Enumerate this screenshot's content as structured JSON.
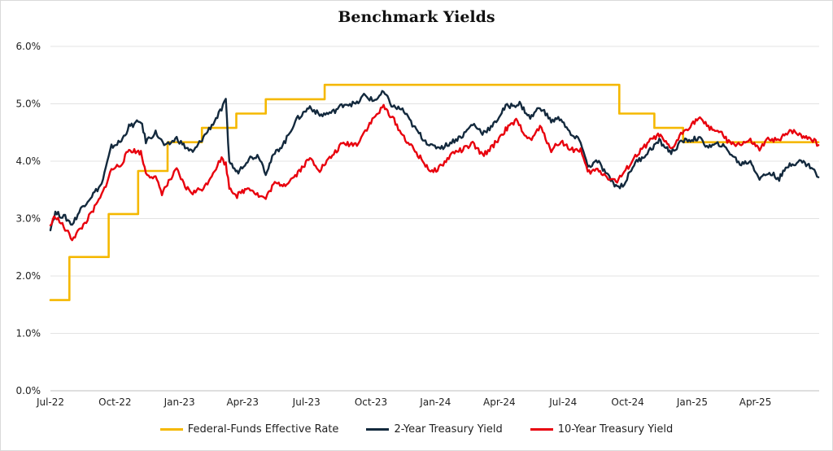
{
  "chart_data": {
    "type": "line",
    "title": "Benchmark Yields",
    "xlabel": "",
    "ylabel": "",
    "x_ticks": [
      "Jul-22",
      "Oct-22",
      "Jan-23",
      "Apr-23",
      "Jul-23",
      "Oct-23",
      "Jan-24",
      "Apr-24",
      "Jul-24",
      "Oct-24",
      "Jan-25",
      "Apr-25"
    ],
    "y_ticks": [
      "0.0%",
      "1.0%",
      "2.0%",
      "3.0%",
      "4.0%",
      "5.0%",
      "6.0%"
    ],
    "ylim": [
      0,
      6
    ],
    "xlim": [
      "2022-07-01",
      "2025-07-01"
    ],
    "grid": "horizontal",
    "legend_position": "bottom",
    "series": [
      {
        "name": "Federal-Funds Effective Rate",
        "color": "#f5b800",
        "step": true,
        "points": [
          [
            "2022-07-01",
            1.58
          ],
          [
            "2022-07-28",
            2.33
          ],
          [
            "2022-09-22",
            3.08
          ],
          [
            "2022-11-03",
            3.83
          ],
          [
            "2022-12-15",
            4.33
          ],
          [
            "2023-02-02",
            4.58
          ],
          [
            "2023-03-23",
            4.83
          ],
          [
            "2023-05-04",
            5.08
          ],
          [
            "2023-07-27",
            5.33
          ],
          [
            "2024-09-19",
            4.83
          ],
          [
            "2024-11-08",
            4.58
          ],
          [
            "2024-12-19",
            4.33
          ],
          [
            "2025-06-30",
            4.33
          ]
        ]
      },
      {
        "name": "2-Year Treasury Yield",
        "color": "#13293d",
        "points": [
          [
            "2022-07-01",
            2.84
          ],
          [
            "2022-07-08",
            3.1
          ],
          [
            "2022-07-22",
            3.02
          ],
          [
            "2022-08-01",
            2.9
          ],
          [
            "2022-08-15",
            3.2
          ],
          [
            "2022-08-29",
            3.4
          ],
          [
            "2022-09-12",
            3.6
          ],
          [
            "2022-09-26",
            4.25
          ],
          [
            "2022-10-10",
            4.35
          ],
          [
            "2022-10-21",
            4.6
          ],
          [
            "2022-11-07",
            4.7
          ],
          [
            "2022-11-14",
            4.35
          ],
          [
            "2022-11-28",
            4.5
          ],
          [
            "2022-12-12",
            4.25
          ],
          [
            "2022-12-28",
            4.4
          ],
          [
            "2023-01-09",
            4.25
          ],
          [
            "2023-01-20",
            4.15
          ],
          [
            "2023-02-06",
            4.45
          ],
          [
            "2023-02-20",
            4.7
          ],
          [
            "2023-03-02",
            4.9
          ],
          [
            "2023-03-08",
            5.05
          ],
          [
            "2023-03-13",
            4.0
          ],
          [
            "2023-03-24",
            3.8
          ],
          [
            "2023-04-10",
            4.05
          ],
          [
            "2023-04-24",
            4.1
          ],
          [
            "2023-05-04",
            3.8
          ],
          [
            "2023-05-15",
            4.1
          ],
          [
            "2023-06-01",
            4.35
          ],
          [
            "2023-06-15",
            4.7
          ],
          [
            "2023-07-06",
            4.95
          ],
          [
            "2023-07-20",
            4.8
          ],
          [
            "2023-08-07",
            4.85
          ],
          [
            "2023-08-24",
            5.0
          ],
          [
            "2023-09-11",
            5.0
          ],
          [
            "2023-09-21",
            5.15
          ],
          [
            "2023-10-05",
            5.05
          ],
          [
            "2023-10-19",
            5.2
          ],
          [
            "2023-11-01",
            4.95
          ],
          [
            "2023-11-15",
            4.9
          ],
          [
            "2023-12-01",
            4.6
          ],
          [
            "2023-12-14",
            4.4
          ],
          [
            "2023-12-27",
            4.25
          ],
          [
            "2024-01-12",
            4.25
          ],
          [
            "2024-01-26",
            4.35
          ],
          [
            "2024-02-09",
            4.45
          ],
          [
            "2024-02-23",
            4.65
          ],
          [
            "2024-03-08",
            4.5
          ],
          [
            "2024-03-22",
            4.6
          ],
          [
            "2024-04-10",
            4.95
          ],
          [
            "2024-04-30",
            5.0
          ],
          [
            "2024-05-15",
            4.75
          ],
          [
            "2024-05-29",
            4.95
          ],
          [
            "2024-06-14",
            4.7
          ],
          [
            "2024-06-28",
            4.75
          ],
          [
            "2024-07-12",
            4.45
          ],
          [
            "2024-07-26",
            4.35
          ],
          [
            "2024-08-05",
            3.9
          ],
          [
            "2024-08-19",
            4.0
          ],
          [
            "2024-09-05",
            3.7
          ],
          [
            "2024-09-16",
            3.55
          ],
          [
            "2024-09-26",
            3.6
          ],
          [
            "2024-10-10",
            3.95
          ],
          [
            "2024-10-25",
            4.1
          ],
          [
            "2024-11-06",
            4.25
          ],
          [
            "2024-11-15",
            4.35
          ],
          [
            "2024-12-02",
            4.15
          ],
          [
            "2024-12-18",
            4.35
          ],
          [
            "2025-01-10",
            4.4
          ],
          [
            "2025-01-24",
            4.25
          ],
          [
            "2025-02-10",
            4.3
          ],
          [
            "2025-02-24",
            4.15
          ],
          [
            "2025-03-10",
            3.95
          ],
          [
            "2025-03-25",
            4.0
          ],
          [
            "2025-04-07",
            3.7
          ],
          [
            "2025-04-21",
            3.8
          ],
          [
            "2025-05-05",
            3.7
          ],
          [
            "2025-05-20",
            3.95
          ],
          [
            "2025-06-05",
            4.0
          ],
          [
            "2025-06-20",
            3.9
          ],
          [
            "2025-06-30",
            3.72
          ]
        ]
      },
      {
        "name": "10-Year Treasury Yield",
        "color": "#e8000d",
        "points": [
          [
            "2022-07-01",
            2.88
          ],
          [
            "2022-07-08",
            3.05
          ],
          [
            "2022-07-20",
            2.85
          ],
          [
            "2022-08-01",
            2.65
          ],
          [
            "2022-08-15",
            2.85
          ],
          [
            "2022-08-29",
            3.1
          ],
          [
            "2022-09-12",
            3.4
          ],
          [
            "2022-09-26",
            3.85
          ],
          [
            "2022-10-10",
            3.95
          ],
          [
            "2022-10-21",
            4.2
          ],
          [
            "2022-11-07",
            4.15
          ],
          [
            "2022-11-14",
            3.8
          ],
          [
            "2022-11-28",
            3.7
          ],
          [
            "2022-12-07",
            3.45
          ],
          [
            "2022-12-28",
            3.85
          ],
          [
            "2023-01-09",
            3.55
          ],
          [
            "2023-01-20",
            3.45
          ],
          [
            "2023-02-06",
            3.55
          ],
          [
            "2023-02-20",
            3.85
          ],
          [
            "2023-03-02",
            4.05
          ],
          [
            "2023-03-08",
            3.95
          ],
          [
            "2023-03-13",
            3.55
          ],
          [
            "2023-03-24",
            3.4
          ],
          [
            "2023-04-10",
            3.55
          ],
          [
            "2023-04-24",
            3.4
          ],
          [
            "2023-05-04",
            3.35
          ],
          [
            "2023-05-15",
            3.6
          ],
          [
            "2023-06-01",
            3.6
          ],
          [
            "2023-06-15",
            3.75
          ],
          [
            "2023-07-06",
            4.05
          ],
          [
            "2023-07-20",
            3.85
          ],
          [
            "2023-08-07",
            4.1
          ],
          [
            "2023-08-21",
            4.3
          ],
          [
            "2023-09-11",
            4.3
          ],
          [
            "2023-09-21",
            4.5
          ],
          [
            "2023-10-05",
            4.75
          ],
          [
            "2023-10-19",
            4.95
          ],
          [
            "2023-11-01",
            4.75
          ],
          [
            "2023-11-15",
            4.45
          ],
          [
            "2023-12-01",
            4.2
          ],
          [
            "2023-12-14",
            4.0
          ],
          [
            "2023-12-27",
            3.8
          ],
          [
            "2024-01-12",
            3.95
          ],
          [
            "2024-01-26",
            4.15
          ],
          [
            "2024-02-09",
            4.2
          ],
          [
            "2024-02-23",
            4.3
          ],
          [
            "2024-03-08",
            4.1
          ],
          [
            "2024-03-22",
            4.25
          ],
          [
            "2024-04-10",
            4.55
          ],
          [
            "2024-04-25",
            4.7
          ],
          [
            "2024-05-15",
            4.35
          ],
          [
            "2024-05-29",
            4.6
          ],
          [
            "2024-06-14",
            4.2
          ],
          [
            "2024-06-28",
            4.35
          ],
          [
            "2024-07-12",
            4.2
          ],
          [
            "2024-07-26",
            4.2
          ],
          [
            "2024-08-05",
            3.8
          ],
          [
            "2024-08-19",
            3.85
          ],
          [
            "2024-09-05",
            3.7
          ],
          [
            "2024-09-16",
            3.65
          ],
          [
            "2024-09-26",
            3.8
          ],
          [
            "2024-10-10",
            4.05
          ],
          [
            "2024-10-25",
            4.25
          ],
          [
            "2024-11-06",
            4.4
          ],
          [
            "2024-11-15",
            4.45
          ],
          [
            "2024-12-02",
            4.2
          ],
          [
            "2024-12-18",
            4.5
          ],
          [
            "2025-01-10",
            4.75
          ],
          [
            "2025-01-24",
            4.6
          ],
          [
            "2025-02-10",
            4.5
          ],
          [
            "2025-02-24",
            4.3
          ],
          [
            "2025-03-10",
            4.3
          ],
          [
            "2025-03-25",
            4.35
          ],
          [
            "2025-04-07",
            4.2
          ],
          [
            "2025-04-21",
            4.4
          ],
          [
            "2025-05-05",
            4.35
          ],
          [
            "2025-05-20",
            4.55
          ],
          [
            "2025-06-05",
            4.45
          ],
          [
            "2025-06-20",
            4.4
          ],
          [
            "2025-06-30",
            4.28
          ]
        ]
      }
    ]
  }
}
